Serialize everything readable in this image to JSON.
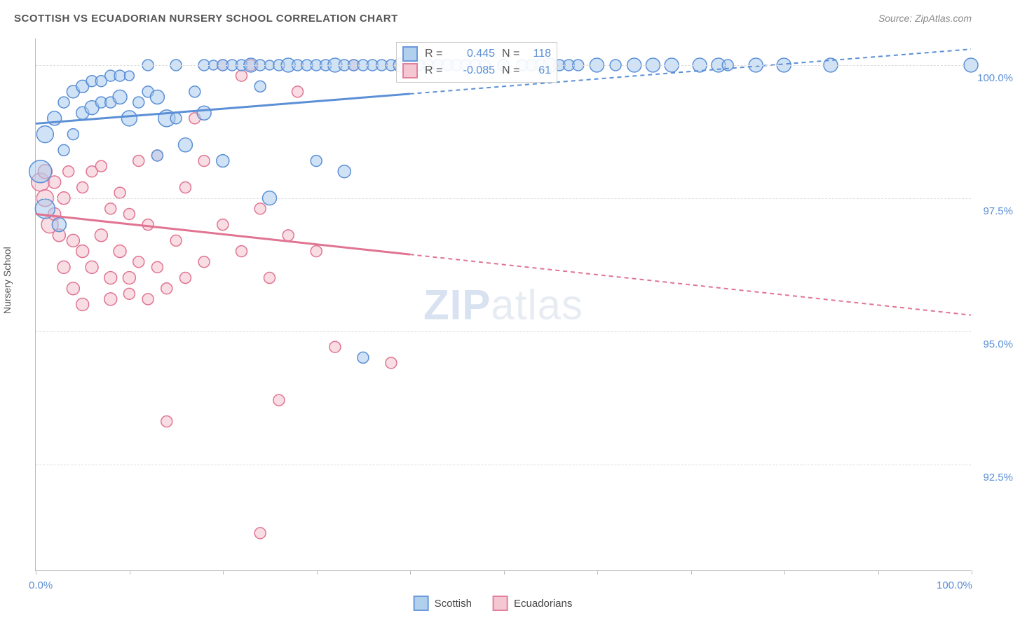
{
  "title": "SCOTTISH VS ECUADORIAN NURSERY SCHOOL CORRELATION CHART",
  "source": "Source: ZipAtlas.com",
  "watermark": {
    "prefix": "ZIP",
    "suffix": "atlas"
  },
  "y_axis_title": "Nursery School",
  "chart": {
    "type": "scatter",
    "xlim": [
      0,
      100
    ],
    "ylim": [
      90.5,
      100.5
    ],
    "x_ticks": [
      0,
      10,
      20,
      30,
      40,
      50,
      60,
      70,
      80,
      90,
      100
    ],
    "x_tick_labels_shown": {
      "0": "0.0%",
      "100": "100.0%"
    },
    "y_ticks": [
      92.5,
      95.0,
      97.5,
      100.0
    ],
    "y_tick_labels": {
      "92.5": "92.5%",
      "95.0": "95.0%",
      "97.5": "97.5%",
      "100.0": "100.0%"
    },
    "grid_color": "#dddddd",
    "axis_color": "#bbbbbb",
    "background_color": "#ffffff"
  },
  "series": [
    {
      "name": "Scottish",
      "color_fill": "#a9cbed",
      "color_stroke": "#5b8fd6",
      "fill_opacity": 0.55,
      "marker_radius_range": [
        6,
        16
      ],
      "R": "0.445",
      "N": "118",
      "regression": {
        "x1": 0,
        "y1": 98.9,
        "x2": 100,
        "y2": 100.3,
        "solid_until_x": 40
      },
      "points": [
        {
          "x": 0.5,
          "y": 98.0,
          "r": 16
        },
        {
          "x": 1,
          "y": 98.7,
          "r": 12
        },
        {
          "x": 1,
          "y": 97.3,
          "r": 14
        },
        {
          "x": 2,
          "y": 99.0,
          "r": 10
        },
        {
          "x": 2.5,
          "y": 97.0,
          "r": 10
        },
        {
          "x": 3,
          "y": 99.3,
          "r": 8
        },
        {
          "x": 3,
          "y": 98.4,
          "r": 8
        },
        {
          "x": 4,
          "y": 99.5,
          "r": 9
        },
        {
          "x": 4,
          "y": 98.7,
          "r": 8
        },
        {
          "x": 5,
          "y": 99.6,
          "r": 9
        },
        {
          "x": 5,
          "y": 99.1,
          "r": 9
        },
        {
          "x": 6,
          "y": 99.7,
          "r": 8
        },
        {
          "x": 6,
          "y": 99.2,
          "r": 10
        },
        {
          "x": 7,
          "y": 99.3,
          "r": 8
        },
        {
          "x": 7,
          "y": 99.7,
          "r": 8
        },
        {
          "x": 8,
          "y": 99.3,
          "r": 8
        },
        {
          "x": 8,
          "y": 99.8,
          "r": 8
        },
        {
          "x": 9,
          "y": 99.4,
          "r": 10
        },
        {
          "x": 9,
          "y": 99.8,
          "r": 8
        },
        {
          "x": 10,
          "y": 99.0,
          "r": 11
        },
        {
          "x": 10,
          "y": 99.8,
          "r": 7
        },
        {
          "x": 11,
          "y": 99.3,
          "r": 8
        },
        {
          "x": 12,
          "y": 99.5,
          "r": 8
        },
        {
          "x": 12,
          "y": 100.0,
          "r": 8
        },
        {
          "x": 13,
          "y": 99.4,
          "r": 10
        },
        {
          "x": 13,
          "y": 98.3,
          "r": 8
        },
        {
          "x": 14,
          "y": 99.0,
          "r": 12
        },
        {
          "x": 15,
          "y": 100.0,
          "r": 8
        },
        {
          "x": 15,
          "y": 99.0,
          "r": 8
        },
        {
          "x": 16,
          "y": 98.5,
          "r": 10
        },
        {
          "x": 17,
          "y": 99.5,
          "r": 8
        },
        {
          "x": 18,
          "y": 99.1,
          "r": 10
        },
        {
          "x": 18,
          "y": 100.0,
          "r": 8
        },
        {
          "x": 19,
          "y": 100.0,
          "r": 7
        },
        {
          "x": 20,
          "y": 100.0,
          "r": 8
        },
        {
          "x": 20,
          "y": 98.2,
          "r": 9
        },
        {
          "x": 21,
          "y": 100.0,
          "r": 8
        },
        {
          "x": 22,
          "y": 100.0,
          "r": 8
        },
        {
          "x": 23,
          "y": 100.0,
          "r": 10
        },
        {
          "x": 24,
          "y": 100.0,
          "r": 8
        },
        {
          "x": 24,
          "y": 99.6,
          "r": 8
        },
        {
          "x": 25,
          "y": 100.0,
          "r": 7
        },
        {
          "x": 25,
          "y": 97.5,
          "r": 10
        },
        {
          "x": 26,
          "y": 100.0,
          "r": 8
        },
        {
          "x": 27,
          "y": 100.0,
          "r": 10
        },
        {
          "x": 28,
          "y": 100.0,
          "r": 8
        },
        {
          "x": 29,
          "y": 100.0,
          "r": 8
        },
        {
          "x": 30,
          "y": 100.0,
          "r": 8
        },
        {
          "x": 30,
          "y": 98.2,
          "r": 8
        },
        {
          "x": 31,
          "y": 100.0,
          "r": 8
        },
        {
          "x": 32,
          "y": 100.0,
          "r": 10
        },
        {
          "x": 33,
          "y": 100.0,
          "r": 8
        },
        {
          "x": 33,
          "y": 98.0,
          "r": 9
        },
        {
          "x": 34,
          "y": 100.0,
          "r": 8
        },
        {
          "x": 35,
          "y": 100.0,
          "r": 8
        },
        {
          "x": 35,
          "y": 94.5,
          "r": 8
        },
        {
          "x": 36,
          "y": 100.0,
          "r": 8
        },
        {
          "x": 37,
          "y": 100.0,
          "r": 8
        },
        {
          "x": 38,
          "y": 100.0,
          "r": 8
        },
        {
          "x": 39,
          "y": 100.0,
          "r": 10
        },
        {
          "x": 40,
          "y": 100.0,
          "r": 8
        },
        {
          "x": 41,
          "y": 100.0,
          "r": 8
        },
        {
          "x": 42,
          "y": 100.0,
          "r": 8
        },
        {
          "x": 43,
          "y": 100.0,
          "r": 8
        },
        {
          "x": 44,
          "y": 100.0,
          "r": 8
        },
        {
          "x": 45,
          "y": 100.0,
          "r": 8
        },
        {
          "x": 46,
          "y": 100.0,
          "r": 8
        },
        {
          "x": 47,
          "y": 100.0,
          "r": 8
        },
        {
          "x": 48,
          "y": 100.0,
          "r": 8
        },
        {
          "x": 50,
          "y": 100.0,
          "r": 8
        },
        {
          "x": 52,
          "y": 100.0,
          "r": 8
        },
        {
          "x": 53,
          "y": 100.0,
          "r": 8
        },
        {
          "x": 54,
          "y": 100.0,
          "r": 8
        },
        {
          "x": 55,
          "y": 100.0,
          "r": 10
        },
        {
          "x": 56,
          "y": 100.0,
          "r": 8
        },
        {
          "x": 57,
          "y": 100.0,
          "r": 8
        },
        {
          "x": 58,
          "y": 100.0,
          "r": 8
        },
        {
          "x": 60,
          "y": 100.0,
          "r": 10
        },
        {
          "x": 62,
          "y": 100.0,
          "r": 8
        },
        {
          "x": 64,
          "y": 100.0,
          "r": 10
        },
        {
          "x": 66,
          "y": 100.0,
          "r": 10
        },
        {
          "x": 68,
          "y": 100.0,
          "r": 10
        },
        {
          "x": 71,
          "y": 100.0,
          "r": 10
        },
        {
          "x": 73,
          "y": 100.0,
          "r": 10
        },
        {
          "x": 74,
          "y": 100.0,
          "r": 8
        },
        {
          "x": 77,
          "y": 100.0,
          "r": 10
        },
        {
          "x": 80,
          "y": 100.0,
          "r": 10
        },
        {
          "x": 85,
          "y": 100.0,
          "r": 10
        },
        {
          "x": 100,
          "y": 100.0,
          "r": 10
        }
      ]
    },
    {
      "name": "Ecuadorians",
      "color_fill": "#f4c1ce",
      "color_stroke": "#e07492",
      "fill_opacity": 0.55,
      "marker_radius_range": [
        6,
        14
      ],
      "R": "-0.085",
      "N": "61",
      "regression": {
        "x1": 0,
        "y1": 97.2,
        "x2": 100,
        "y2": 95.3,
        "solid_until_x": 40
      },
      "points": [
        {
          "x": 0.5,
          "y": 97.8,
          "r": 13
        },
        {
          "x": 1,
          "y": 97.5,
          "r": 12
        },
        {
          "x": 1,
          "y": 98.0,
          "r": 10
        },
        {
          "x": 1.5,
          "y": 97.0,
          "r": 12
        },
        {
          "x": 2,
          "y": 97.8,
          "r": 9
        },
        {
          "x": 2,
          "y": 97.2,
          "r": 9
        },
        {
          "x": 2.5,
          "y": 96.8,
          "r": 9
        },
        {
          "x": 3,
          "y": 97.5,
          "r": 9
        },
        {
          "x": 3,
          "y": 96.2,
          "r": 9
        },
        {
          "x": 3.5,
          "y": 98.0,
          "r": 8
        },
        {
          "x": 4,
          "y": 96.7,
          "r": 9
        },
        {
          "x": 4,
          "y": 95.8,
          "r": 9
        },
        {
          "x": 5,
          "y": 97.7,
          "r": 8
        },
        {
          "x": 5,
          "y": 96.5,
          "r": 9
        },
        {
          "x": 5,
          "y": 95.5,
          "r": 9
        },
        {
          "x": 6,
          "y": 98.0,
          "r": 8
        },
        {
          "x": 6,
          "y": 96.2,
          "r": 9
        },
        {
          "x": 7,
          "y": 96.8,
          "r": 9
        },
        {
          "x": 7,
          "y": 98.1,
          "r": 8
        },
        {
          "x": 8,
          "y": 96.0,
          "r": 9
        },
        {
          "x": 8,
          "y": 97.3,
          "r": 8
        },
        {
          "x": 8,
          "y": 95.6,
          "r": 9
        },
        {
          "x": 9,
          "y": 96.5,
          "r": 9
        },
        {
          "x": 9,
          "y": 97.6,
          "r": 8
        },
        {
          "x": 10,
          "y": 96.0,
          "r": 9
        },
        {
          "x": 10,
          "y": 97.2,
          "r": 8
        },
        {
          "x": 10,
          "y": 95.7,
          "r": 8
        },
        {
          "x": 11,
          "y": 98.2,
          "r": 8
        },
        {
          "x": 11,
          "y": 96.3,
          "r": 8
        },
        {
          "x": 12,
          "y": 95.6,
          "r": 8
        },
        {
          "x": 12,
          "y": 97.0,
          "r": 8
        },
        {
          "x": 13,
          "y": 96.2,
          "r": 8
        },
        {
          "x": 13,
          "y": 98.3,
          "r": 8
        },
        {
          "x": 14,
          "y": 95.8,
          "r": 8
        },
        {
          "x": 14,
          "y": 93.3,
          "r": 8
        },
        {
          "x": 15,
          "y": 96.7,
          "r": 8
        },
        {
          "x": 16,
          "y": 97.7,
          "r": 8
        },
        {
          "x": 16,
          "y": 96.0,
          "r": 8
        },
        {
          "x": 17,
          "y": 99.0,
          "r": 8
        },
        {
          "x": 18,
          "y": 96.3,
          "r": 8
        },
        {
          "x": 18,
          "y": 98.2,
          "r": 8
        },
        {
          "x": 20,
          "y": 100.0,
          "r": 8
        },
        {
          "x": 20,
          "y": 97.0,
          "r": 8
        },
        {
          "x": 22,
          "y": 96.5,
          "r": 8
        },
        {
          "x": 22,
          "y": 99.8,
          "r": 8
        },
        {
          "x": 23,
          "y": 100.0,
          "r": 8
        },
        {
          "x": 24,
          "y": 97.3,
          "r": 8
        },
        {
          "x": 24,
          "y": 91.2,
          "r": 8
        },
        {
          "x": 25,
          "y": 96.0,
          "r": 8
        },
        {
          "x": 26,
          "y": 93.7,
          "r": 8
        },
        {
          "x": 27,
          "y": 96.8,
          "r": 8
        },
        {
          "x": 28,
          "y": 99.5,
          "r": 8
        },
        {
          "x": 30,
          "y": 96.5,
          "r": 8
        },
        {
          "x": 32,
          "y": 94.7,
          "r": 8
        },
        {
          "x": 34,
          "y": 100.0,
          "r": 8
        },
        {
          "x": 38,
          "y": 94.4,
          "r": 8
        }
      ]
    }
  ],
  "legend_top": {
    "r_label": "R =",
    "n_label": "N ="
  },
  "legend_bottom": [
    {
      "label": "Scottish",
      "swatch_fill": "#a9cbed",
      "swatch_stroke": "#5b8fd6"
    },
    {
      "label": "Ecuadorians",
      "swatch_fill": "#f4c1ce",
      "swatch_stroke": "#e07492"
    }
  ]
}
